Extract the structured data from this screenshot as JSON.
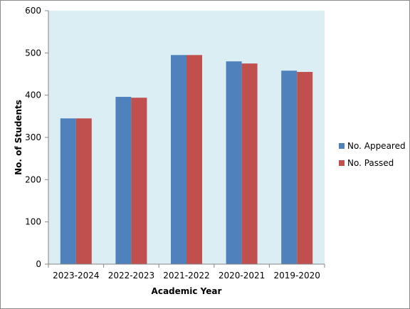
{
  "chart_data": {
    "type": "bar",
    "title": "",
    "xlabel": "Academic Year",
    "ylabel": "No. of Students",
    "categories": [
      "2023-2024",
      "2022-2023",
      "2021-2022",
      "2020-2021",
      "2019-2020"
    ],
    "series": [
      {
        "name": "No. Appeared",
        "color": "#4f81bd",
        "values": [
          345,
          396,
          495,
          480,
          458
        ]
      },
      {
        "name": "No. Passed",
        "color": "#c0504d",
        "values": [
          345,
          394,
          495,
          475,
          455
        ]
      }
    ],
    "ylim": [
      0,
      600
    ],
    "yticks": [
      0,
      100,
      200,
      300,
      400,
      500,
      600
    ],
    "grid": false,
    "legend_position": "right",
    "plot_background": "#dbeef4"
  }
}
